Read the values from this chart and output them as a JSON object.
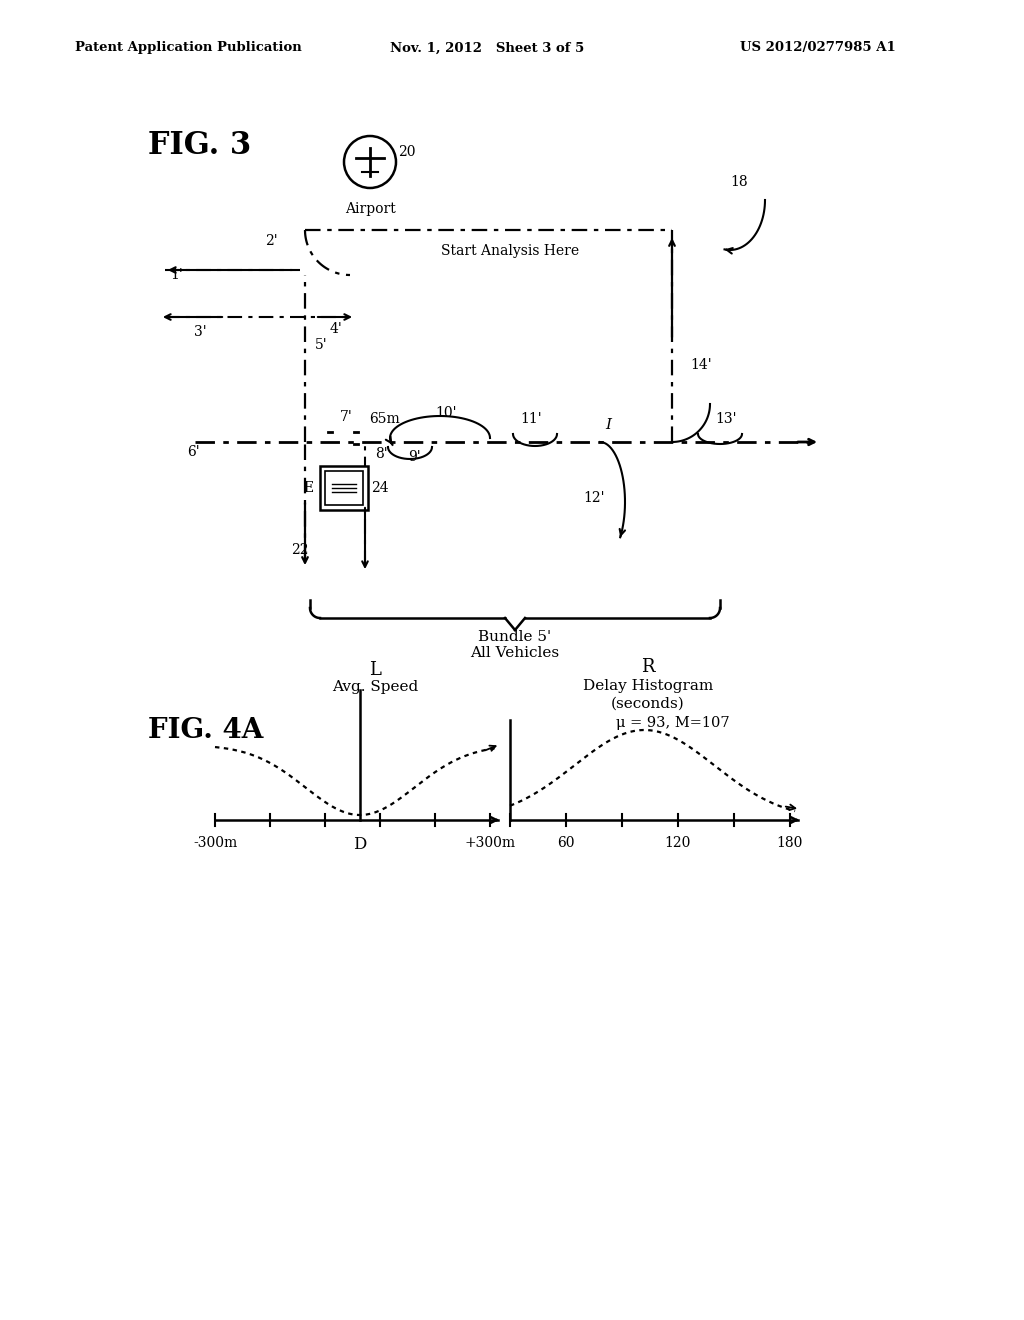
{
  "title_left": "Patent Application Publication",
  "title_mid": "Nov. 1, 2012   Sheet 3 of 5",
  "title_right": "US 2012/0277985 A1",
  "fig3_label": "FIG. 3",
  "fig4a_label": "FIG. 4A",
  "airport_label": "Airport",
  "ref_20": "20",
  "ref_18": "18",
  "start_analysis": "Start Analysis Here",
  "ref_1": "1'",
  "ref_2": "2'",
  "ref_3": "3'",
  "ref_4": "4'",
  "ref_5": "5'",
  "ref_6": "6'",
  "ref_7": "7'",
  "ref_8": "8'",
  "ref_9": "9'",
  "ref_10": "10'",
  "ref_11": "11'",
  "ref_12": "12'",
  "ref_13": "13'",
  "ref_14": "14'",
  "ref_22": "22",
  "ref_24": "24",
  "ref_65m": "65m",
  "ref_I": "I",
  "ref_E": "E",
  "bundle_label": "Bundle 5'",
  "all_vehicles": "All Vehicles",
  "L_label": "L",
  "R_label": "R",
  "avg_speed": "Avg. Speed",
  "delay_histogram": "Delay Histogram",
  "seconds": "(seconds)",
  "mu_M": "μ = 93, M=107",
  "x_left_labels": [
    "-300m",
    "D",
    "+300m"
  ],
  "x_right_labels": [
    "60",
    "120",
    "180"
  ],
  "bg_color": "#ffffff",
  "line_color": "#000000"
}
